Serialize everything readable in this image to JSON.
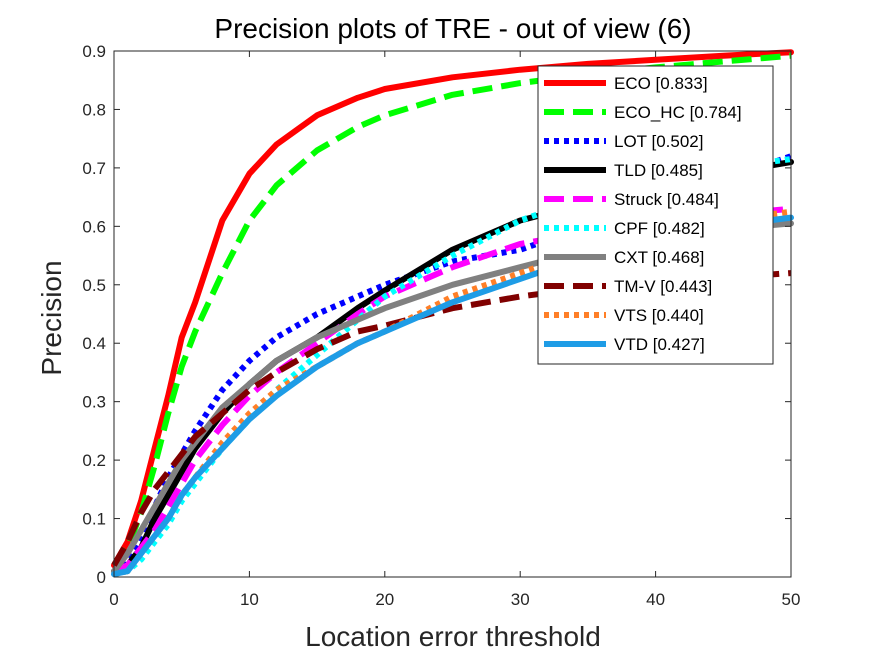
{
  "chart_data": {
    "type": "line",
    "title": "Precision plots of TRE - out of view (6)",
    "xlabel": "Location error threshold",
    "ylabel": "Precision",
    "xlim": [
      0,
      50
    ],
    "ylim": [
      0,
      0.9
    ],
    "xticks": [
      "0",
      "10",
      "20",
      "30",
      "40",
      "50"
    ],
    "yticks": [
      "0",
      "0.1",
      "0.2",
      "0.3",
      "0.4",
      "0.5",
      "0.6",
      "0.7",
      "0.8",
      "0.9"
    ],
    "legend_position": "top-right",
    "x": [
      0,
      1,
      2,
      3,
      4,
      5,
      6,
      8,
      10,
      12,
      15,
      18,
      20,
      25,
      30,
      35,
      40,
      45,
      50
    ],
    "series": [
      {
        "name": "ECO [0.833]",
        "color": "#ff0000",
        "style": "solid",
        "values": [
          0.02,
          0.06,
          0.13,
          0.22,
          0.31,
          0.41,
          0.47,
          0.61,
          0.69,
          0.74,
          0.79,
          0.82,
          0.835,
          0.855,
          0.868,
          0.878,
          0.885,
          0.892,
          0.898
        ]
      },
      {
        "name": "ECO_HC [0.784]",
        "color": "#00ff00",
        "style": "dashed",
        "values": [
          0.02,
          0.05,
          0.11,
          0.19,
          0.28,
          0.36,
          0.42,
          0.52,
          0.61,
          0.67,
          0.73,
          0.77,
          0.79,
          0.825,
          0.845,
          0.86,
          0.872,
          0.882,
          0.892
        ]
      },
      {
        "name": "LOT [0.502]",
        "color": "#0000ff",
        "style": "dotted",
        "values": [
          0.01,
          0.03,
          0.07,
          0.12,
          0.17,
          0.21,
          0.25,
          0.32,
          0.37,
          0.41,
          0.45,
          0.48,
          0.5,
          0.54,
          0.56,
          0.6,
          0.64,
          0.68,
          0.72
        ]
      },
      {
        "name": "TLD [0.485]",
        "color": "#000000",
        "style": "solid",
        "values": [
          0.01,
          0.02,
          0.05,
          0.1,
          0.14,
          0.18,
          0.22,
          0.28,
          0.33,
          0.37,
          0.41,
          0.46,
          0.49,
          0.56,
          0.61,
          0.64,
          0.67,
          0.69,
          0.71
        ]
      },
      {
        "name": "Struck [0.484]",
        "color": "#ff00ff",
        "style": "dashed",
        "values": [
          0.01,
          0.02,
          0.05,
          0.08,
          0.12,
          0.16,
          0.2,
          0.26,
          0.31,
          0.35,
          0.4,
          0.45,
          0.48,
          0.53,
          0.57,
          0.59,
          0.61,
          0.62,
          0.63
        ]
      },
      {
        "name": "CPF [0.482]",
        "color": "#00ffff",
        "style": "dotted",
        "values": [
          0.005,
          0.01,
          0.03,
          0.06,
          0.09,
          0.13,
          0.16,
          0.22,
          0.27,
          0.32,
          0.38,
          0.44,
          0.48,
          0.55,
          0.61,
          0.65,
          0.68,
          0.7,
          0.715
        ]
      },
      {
        "name": "CXT [0.468]",
        "color": "#808080",
        "style": "solid",
        "values": [
          0.01,
          0.04,
          0.08,
          0.12,
          0.16,
          0.2,
          0.23,
          0.29,
          0.33,
          0.37,
          0.41,
          0.44,
          0.46,
          0.5,
          0.53,
          0.56,
          0.58,
          0.595,
          0.605
        ]
      },
      {
        "name": "TM-V [0.443]",
        "color": "#800000",
        "style": "dashed",
        "values": [
          0.02,
          0.06,
          0.11,
          0.15,
          0.18,
          0.21,
          0.24,
          0.28,
          0.32,
          0.35,
          0.39,
          0.42,
          0.43,
          0.46,
          0.48,
          0.495,
          0.505,
          0.512,
          0.52
        ]
      },
      {
        "name": "VTS [0.440]",
        "color": "#ff7f27",
        "style": "dotted",
        "values": [
          0.005,
          0.01,
          0.04,
          0.07,
          0.1,
          0.14,
          0.17,
          0.23,
          0.28,
          0.32,
          0.36,
          0.4,
          0.42,
          0.48,
          0.52,
          0.56,
          0.59,
          0.61,
          0.625
        ]
      },
      {
        "name": "VTD [0.427]",
        "color": "#1e9ce6",
        "style": "solid",
        "values": [
          0.005,
          0.01,
          0.04,
          0.07,
          0.1,
          0.14,
          0.17,
          0.22,
          0.27,
          0.31,
          0.36,
          0.4,
          0.42,
          0.47,
          0.51,
          0.55,
          0.58,
          0.6,
          0.615
        ]
      }
    ]
  }
}
